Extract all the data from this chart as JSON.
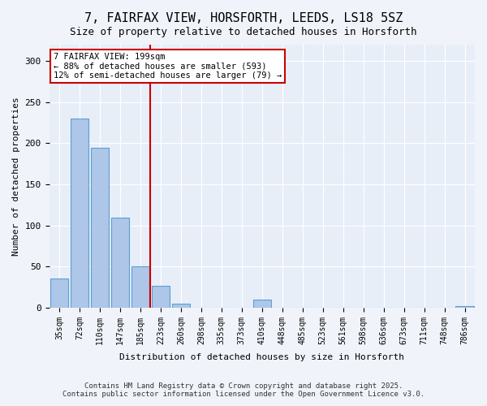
{
  "title": "7, FAIRFAX VIEW, HORSFORTH, LEEDS, LS18 5SZ",
  "subtitle": "Size of property relative to detached houses in Horsforth",
  "xlabel": "Distribution of detached houses by size in Horsforth",
  "ylabel": "Number of detached properties",
  "bin_labels": [
    "35sqm",
    "72sqm",
    "110sqm",
    "147sqm",
    "185sqm",
    "223sqm",
    "260sqm",
    "298sqm",
    "335sqm",
    "373sqm",
    "410sqm",
    "448sqm",
    "485sqm",
    "523sqm",
    "561sqm",
    "598sqm",
    "636sqm",
    "673sqm",
    "711sqm",
    "748sqm",
    "786sqm"
  ],
  "bar_values": [
    35,
    230,
    195,
    110,
    50,
    27,
    5,
    0,
    0,
    0,
    10,
    0,
    0,
    0,
    0,
    0,
    0,
    0,
    0,
    0,
    2
  ],
  "bar_color": "#aec6e8",
  "bar_edge_color": "#5a9fd4",
  "vline_x": 4.5,
  "vline_color": "#cc0000",
  "annotation_text": "7 FAIRFAX VIEW: 199sqm\n← 88% of detached houses are smaller (593)\n12% of semi-detached houses are larger (79) →",
  "annotation_box_color": "#cc0000",
  "footer_text": "Contains HM Land Registry data © Crown copyright and database right 2025.\nContains public sector information licensed under the Open Government Licence v3.0.",
  "ylim": [
    0,
    320
  ],
  "yticks": [
    0,
    50,
    100,
    150,
    200,
    250,
    300
  ],
  "background_color": "#f0f4fa",
  "plot_background": "#e8eef8"
}
